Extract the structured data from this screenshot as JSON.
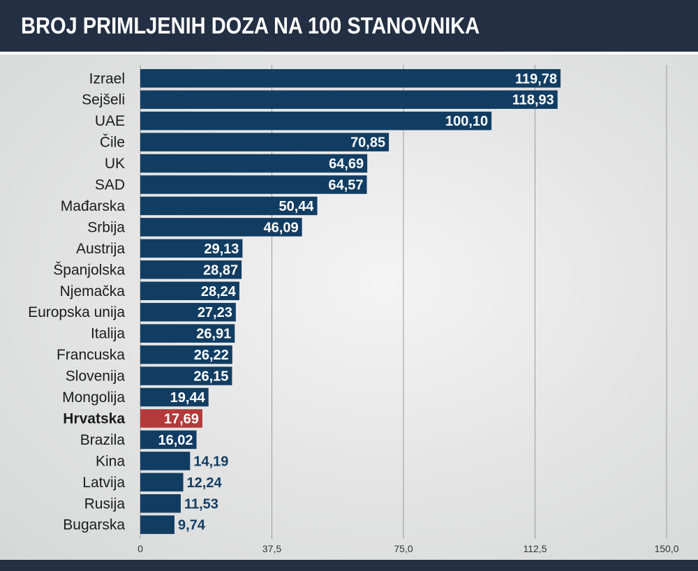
{
  "chart_data": {
    "type": "bar",
    "orientation": "horizontal",
    "title": "BROJ PRIMLJENIH DOZA NA 100 STANOVNIKA",
    "categories": [
      "Izrael",
      "Sejšeli",
      "UAE",
      "Čile",
      "UK",
      "SAD",
      "Mađarska",
      "Srbija",
      "Austrija",
      "Španjolska",
      "Njemačka",
      "Europska unija",
      "Italija",
      "Francuska",
      "Slovenija",
      "Mongolija",
      "Hrvatska",
      "Brazila",
      "Kina",
      "Latvija",
      "Rusija",
      "Bugarska"
    ],
    "values": [
      119.78,
      118.93,
      100.1,
      70.85,
      64.69,
      64.57,
      50.44,
      46.09,
      29.13,
      28.87,
      28.24,
      27.23,
      26.91,
      26.22,
      26.15,
      19.44,
      17.69,
      16.02,
      14.19,
      12.24,
      11.53,
      9.74
    ],
    "value_labels": [
      "119,78",
      "118,93",
      "100,10",
      "70,85",
      "64,69",
      "64,57",
      "50,44",
      "46,09",
      "29,13",
      "28,87",
      "28,24",
      "27,23",
      "26,91",
      "26,22",
      "26,15",
      "19,44",
      "17,69",
      "16,02",
      "14,19",
      "12,24",
      "11,53",
      "9,74"
    ],
    "highlight": "Hrvatska",
    "xlim": [
      0,
      150
    ],
    "xticks": [
      0,
      37.5,
      75,
      112.5,
      150
    ],
    "xtick_labels": [
      "0",
      "37,5",
      "75,0",
      "112,5",
      "150,0"
    ],
    "grid": true,
    "colors": {
      "bar": "#123d63",
      "highlight": "#b33a3a",
      "header": "#232f42"
    }
  }
}
